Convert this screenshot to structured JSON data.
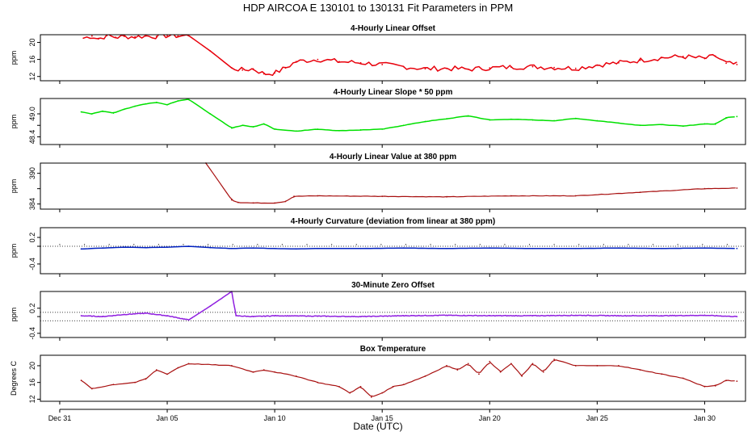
{
  "figure": {
    "title": "HDP   AIRCOA E   130101 to 130131   Fit Parameters in PPM",
    "xlabel": "Date (UTC)",
    "x_ticks": [
      "Dec 31",
      "Jan 05",
      "Jan 10",
      "Jan 15",
      "Jan 20",
      "Jan 25",
      "Jan 30"
    ]
  },
  "chart_data": [
    {
      "type": "line",
      "title": "4-Hourly Linear Offset",
      "ylabel": "ppm",
      "color": "#e8000b",
      "xlim": [
        -0.9,
        31.9
      ],
      "ylim": [
        11.0,
        21.8
      ],
      "yticks": [
        12,
        16,
        20
      ],
      "ytick_labels": [
        "12",
        "16",
        "20"
      ],
      "x": [
        1.1,
        1.5,
        1.8,
        2.2,
        2.6,
        3.0,
        3.5,
        4.0,
        4.5,
        5.0,
        5.5,
        6.0,
        7.0,
        8.0,
        8.5,
        9.0,
        9.5,
        10.0,
        10.5,
        11.0,
        12.0,
        13.0,
        14.0,
        15.0,
        16.0,
        17.0,
        18.0,
        19.0,
        20.0,
        21.0,
        22.0,
        23.0,
        24.0,
        25.0,
        26.0,
        27.0,
        28.0,
        29.0,
        30.0,
        30.5,
        31.0,
        31.5
      ],
      "y": [
        21.0,
        21.5,
        20.8,
        21.6,
        21.2,
        21.4,
        21.3,
        21.5,
        21.4,
        21.6,
        21.5,
        21.6,
        18.0,
        14.0,
        13.5,
        13.8,
        12.6,
        12.8,
        14.0,
        15.5,
        16.0,
        15.5,
        15.2,
        14.8,
        14.3,
        13.8,
        13.9,
        13.7,
        14.0,
        14.2,
        14.3,
        14.1,
        13.9,
        14.7,
        15.2,
        15.8,
        16.4,
        16.7,
        16.2,
        16.8,
        15.1,
        14.8
      ]
    },
    {
      "type": "line",
      "title": "4-Hourly Linear Slope * 50 ppm",
      "ylabel": "ppm",
      "color": "#00e000",
      "xlim": [
        -0.9,
        31.9
      ],
      "ylim": [
        48.2,
        49.4
      ],
      "yticks": [
        48.4,
        48.7,
        49.0
      ],
      "ytick_labels": [
        "48.4",
        "",
        "49.0"
      ],
      "x": [
        1.0,
        1.5,
        2.0,
        2.5,
        3.0,
        3.5,
        4.0,
        4.5,
        5.0,
        5.5,
        6.0,
        7.0,
        8.0,
        8.5,
        9.0,
        9.5,
        10.0,
        11.0,
        12.0,
        13.0,
        14.0,
        15.0,
        16.0,
        17.0,
        18.0,
        19.0,
        20.0,
        21.0,
        22.0,
        23.0,
        24.0,
        25.0,
        26.0,
        27.0,
        28.0,
        29.0,
        30.0,
        30.5,
        31.0,
        31.5
      ],
      "y": [
        49.05,
        49.0,
        49.07,
        49.02,
        49.12,
        49.2,
        49.26,
        49.3,
        49.24,
        49.34,
        49.38,
        49.0,
        48.63,
        48.7,
        48.66,
        48.74,
        48.6,
        48.55,
        48.6,
        48.56,
        48.58,
        48.6,
        48.7,
        48.8,
        48.87,
        48.95,
        48.84,
        48.86,
        48.84,
        48.82,
        48.88,
        48.82,
        48.76,
        48.7,
        48.72,
        48.68,
        48.74,
        48.73,
        48.9,
        48.93
      ]
    },
    {
      "type": "line",
      "title": "4-Hourly Linear Value at 380 ppm",
      "ylabel": "ppm",
      "color": "#a81010",
      "xlim": [
        -0.9,
        31.9
      ],
      "ylim": [
        383.0,
        392.0
      ],
      "yticks": [
        384,
        387,
        390
      ],
      "ytick_labels": [
        "384",
        "",
        "390"
      ],
      "x": [
        6.8,
        8.0,
        8.3,
        9.0,
        10.0,
        10.5,
        10.9,
        12.0,
        15.0,
        18.0,
        21.0,
        24.0,
        27.0,
        30.0,
        31.5
      ],
      "y": [
        392.0,
        384.8,
        384.3,
        384.2,
        384.2,
        384.5,
        385.5,
        385.6,
        385.5,
        385.4,
        385.6,
        385.6,
        386.3,
        387.0,
        387.1
      ]
    },
    {
      "type": "line",
      "title": "4-Hourly Curvature (deviation from linear at 380 ppm)",
      "ylabel": "ppm",
      "color": "#0020c0",
      "xlim": [
        -0.9,
        31.9
      ],
      "ylim": [
        -0.62,
        0.42
      ],
      "yticks": [
        -0.4,
        0.0,
        0.2
      ],
      "ytick_labels": [
        "-0.4",
        "",
        "0.2"
      ],
      "reference_lines": [
        0.0
      ],
      "x": [
        1.0,
        2.0,
        3.0,
        4.0,
        5.0,
        6.0,
        7.0,
        8.0,
        9.0,
        10.0,
        11.0,
        12.0,
        14.0,
        16.0,
        18.0,
        20.0,
        22.0,
        24.0,
        26.0,
        28.0,
        30.0,
        31.5
      ],
      "y": [
        -0.06,
        -0.04,
        -0.02,
        -0.03,
        -0.02,
        0.0,
        -0.03,
        -0.05,
        -0.04,
        -0.05,
        -0.06,
        -0.05,
        -0.05,
        -0.04,
        -0.05,
        -0.04,
        -0.05,
        -0.05,
        -0.04,
        -0.05,
        -0.04,
        -0.05
      ]
    },
    {
      "type": "line",
      "title": "30-Minute Zero Offset",
      "ylabel": "ppm",
      "color": "#9020e0",
      "xlim": [
        -0.9,
        31.9
      ],
      "ylim": [
        -0.5,
        0.6
      ],
      "yticks": [
        -0.4,
        0.0,
        0.2
      ],
      "ytick_labels": [
        "-0.4",
        "",
        "0.2"
      ],
      "reference_lines": [
        0.1,
        -0.1
      ],
      "x": [
        1.0,
        2.0,
        3.0,
        4.0,
        5.0,
        6.0,
        7.0,
        8.0,
        8.2,
        9.0,
        10.0,
        12.0,
        14.0,
        16.0,
        18.0,
        20.0,
        22.0,
        24.0,
        26.0,
        28.0,
        30.0,
        31.5
      ],
      "y": [
        0.02,
        0.0,
        0.05,
        0.08,
        0.02,
        -0.08,
        0.25,
        0.6,
        0.02,
        0.0,
        0.02,
        0.01,
        0.0,
        0.02,
        0.03,
        0.02,
        0.02,
        0.03,
        0.02,
        0.02,
        0.03,
        0.0
      ]
    },
    {
      "type": "line",
      "title": "Box Temperature",
      "ylabel": "Degrees C",
      "color": "#a81010",
      "xlim": [
        -0.9,
        31.9
      ],
      "ylim": [
        11.5,
        22.5
      ],
      "yticks": [
        12,
        16,
        20
      ],
      "ytick_labels": [
        "12",
        "16",
        "20"
      ],
      "x": [
        1.0,
        1.5,
        2.5,
        3.5,
        4.0,
        4.5,
        5.0,
        5.5,
        6.0,
        8.0,
        9.0,
        9.5,
        10.0,
        11.0,
        12.0,
        13.0,
        13.5,
        14.0,
        14.5,
        15.0,
        15.5,
        16.0,
        17.0,
        18.0,
        18.5,
        19.0,
        19.5,
        20.0,
        20.5,
        21.0,
        21.5,
        22.0,
        22.5,
        23.0,
        24.0,
        25.0,
        26.0,
        27.0,
        28.0,
        29.0,
        30.0,
        30.5,
        31.0,
        31.5
      ],
      "y": [
        16.5,
        14.5,
        15.5,
        16.0,
        16.8,
        19.0,
        18.0,
        19.5,
        20.5,
        20.0,
        18.5,
        19.0,
        18.5,
        17.5,
        16.0,
        15.0,
        13.5,
        15.0,
        12.5,
        13.5,
        15.0,
        15.5,
        17.5,
        20.0,
        19.0,
        20.5,
        18.0,
        21.0,
        18.5,
        20.5,
        17.5,
        20.5,
        18.5,
        21.5,
        20.0,
        20.0,
        20.0,
        19.0,
        18.0,
        17.0,
        15.0,
        15.2,
        16.5,
        16.3
      ]
    }
  ]
}
